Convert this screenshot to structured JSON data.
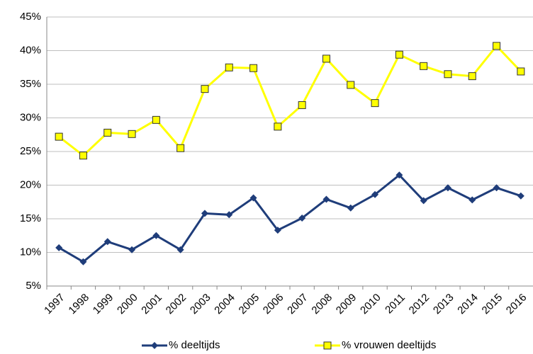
{
  "chart_data": {
    "type": "line",
    "categories": [
      "1997",
      "1998",
      "1999",
      "2000",
      "2001",
      "2002",
      "2003",
      "2004",
      "2005",
      "2006",
      "2007",
      "2008",
      "2009",
      "2010",
      "2011",
      "2012",
      "2013",
      "2014",
      "2015",
      "2016"
    ],
    "series": [
      {
        "name": "% deeltijds",
        "color": "#1f3d7a",
        "values": [
          10.7,
          8.6,
          11.6,
          10.4,
          12.5,
          10.4,
          15.8,
          15.6,
          18.1,
          13.3,
          15.1,
          17.9,
          16.6,
          18.6,
          21.5,
          17.7,
          19.6,
          17.8,
          19.6,
          18.4
        ]
      },
      {
        "name": "% vrouwen deeltijds",
        "color": "#ffff00",
        "values": [
          27.2,
          24.4,
          27.8,
          27.6,
          29.7,
          25.5,
          34.3,
          37.5,
          37.4,
          28.7,
          31.9,
          38.8,
          34.9,
          32.2,
          39.4,
          37.7,
          36.5,
          36.2,
          40.7,
          36.9
        ]
      }
    ],
    "ylim": [
      5,
      45
    ],
    "yticks": [
      {
        "value": 5,
        "label": "5%"
      },
      {
        "value": 10,
        "label": "10%"
      },
      {
        "value": 15,
        "label": "15%"
      },
      {
        "value": 20,
        "label": "20%"
      },
      {
        "value": 25,
        "label": "25%"
      },
      {
        "value": 30,
        "label": "30%"
      },
      {
        "value": 35,
        "label": "35%"
      },
      {
        "value": 40,
        "label": "40%"
      },
      {
        "value": 45,
        "label": "45%"
      }
    ],
    "grid": true,
    "legend": "bottom"
  }
}
